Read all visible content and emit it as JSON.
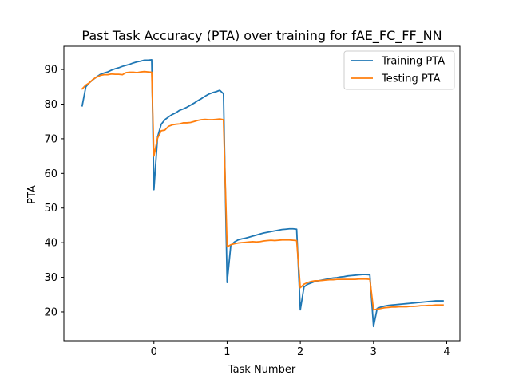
{
  "chart_data": {
    "type": "line",
    "title": "Past Task Accuracy (PTA) over training for fAE_FC_FF_NN",
    "xlabel": "Task Number",
    "ylabel": "PTA",
    "xlim": [
      -1.23,
      4.18
    ],
    "ylim": [
      11.7,
      96.7
    ],
    "xticks": [
      0,
      1,
      2,
      3,
      4
    ],
    "xtick_labels": [
      "0",
      "1",
      "2",
      "3",
      "4"
    ],
    "yticks": [
      20,
      30,
      40,
      50,
      60,
      70,
      80,
      90
    ],
    "ytick_labels": [
      "20",
      "30",
      "40",
      "50",
      "60",
      "70",
      "80",
      "90"
    ],
    "grid": false,
    "legend_position": "upper right",
    "series": [
      {
        "name": "Training PTA",
        "color": "#1f77b4",
        "x": [
          -0.98,
          -0.93,
          -0.88,
          -0.83,
          -0.78,
          -0.73,
          -0.68,
          -0.63,
          -0.58,
          -0.53,
          -0.48,
          -0.43,
          -0.38,
          -0.33,
          -0.28,
          -0.23,
          -0.18,
          -0.13,
          -0.08,
          -0.03,
          0.0,
          0.05,
          0.1,
          0.15,
          0.2,
          0.25,
          0.3,
          0.35,
          0.4,
          0.45,
          0.5,
          0.55,
          0.6,
          0.65,
          0.7,
          0.75,
          0.8,
          0.85,
          0.9,
          0.95,
          1.0,
          1.05,
          1.1,
          1.15,
          1.2,
          1.25,
          1.3,
          1.35,
          1.4,
          1.45,
          1.5,
          1.55,
          1.6,
          1.65,
          1.7,
          1.75,
          1.8,
          1.85,
          1.9,
          1.95,
          2.0,
          2.05,
          2.1,
          2.15,
          2.2,
          2.25,
          2.3,
          2.35,
          2.4,
          2.45,
          2.5,
          2.55,
          2.6,
          2.65,
          2.7,
          2.75,
          2.8,
          2.85,
          2.9,
          2.95,
          3.0,
          3.05,
          3.1,
          3.15,
          3.2,
          3.25,
          3.3,
          3.35,
          3.4,
          3.45,
          3.5,
          3.55,
          3.6,
          3.65,
          3.7,
          3.75,
          3.8,
          3.85,
          3.9,
          3.95
        ],
        "values": [
          79.5,
          85.0,
          86.2,
          87.1,
          87.9,
          88.6,
          89.0,
          89.3,
          89.8,
          90.2,
          90.5,
          90.9,
          91.2,
          91.5,
          91.9,
          92.2,
          92.4,
          92.7,
          92.7,
          92.8,
          55.3,
          70.5,
          74.2,
          75.5,
          76.3,
          77.0,
          77.5,
          78.2,
          78.6,
          79.1,
          79.7,
          80.3,
          81.0,
          81.6,
          82.3,
          82.9,
          83.3,
          83.6,
          84.0,
          83.0,
          28.5,
          39.2,
          40.2,
          40.8,
          41.1,
          41.3,
          41.6,
          41.9,
          42.2,
          42.5,
          42.8,
          43.0,
          43.2,
          43.4,
          43.6,
          43.8,
          43.9,
          44.0,
          44.0,
          43.9,
          20.6,
          27.2,
          28.0,
          28.4,
          28.8,
          29.0,
          29.2,
          29.4,
          29.6,
          29.8,
          29.9,
          30.1,
          30.2,
          30.4,
          30.5,
          30.6,
          30.7,
          30.8,
          30.8,
          30.7,
          15.8,
          21.0,
          21.4,
          21.7,
          21.9,
          22.0,
          22.1,
          22.2,
          22.3,
          22.4,
          22.5,
          22.6,
          22.7,
          22.8,
          22.9,
          23.0,
          23.1,
          23.2,
          23.2,
          23.2
        ]
      },
      {
        "name": "Testing PTA",
        "color": "#ff7f0e",
        "x": [
          -0.98,
          -0.93,
          -0.88,
          -0.83,
          -0.78,
          -0.73,
          -0.68,
          -0.63,
          -0.58,
          -0.53,
          -0.48,
          -0.43,
          -0.38,
          -0.33,
          -0.28,
          -0.23,
          -0.18,
          -0.13,
          -0.08,
          -0.03,
          0.0,
          0.05,
          0.1,
          0.15,
          0.2,
          0.25,
          0.3,
          0.35,
          0.4,
          0.45,
          0.5,
          0.55,
          0.6,
          0.65,
          0.7,
          0.75,
          0.8,
          0.85,
          0.9,
          0.95,
          1.0,
          1.05,
          1.1,
          1.15,
          1.2,
          1.25,
          1.3,
          1.35,
          1.4,
          1.45,
          1.5,
          1.55,
          1.6,
          1.65,
          1.7,
          1.75,
          1.8,
          1.85,
          1.9,
          1.95,
          2.0,
          2.05,
          2.1,
          2.15,
          2.2,
          2.25,
          2.3,
          2.35,
          2.4,
          2.45,
          2.5,
          2.55,
          2.6,
          2.65,
          2.7,
          2.75,
          2.8,
          2.85,
          2.9,
          2.95,
          3.0,
          3.05,
          3.1,
          3.15,
          3.2,
          3.25,
          3.3,
          3.35,
          3.4,
          3.45,
          3.5,
          3.55,
          3.6,
          3.65,
          3.7,
          3.75,
          3.8,
          3.85,
          3.9,
          3.95
        ],
        "values": [
          84.4,
          85.5,
          86.2,
          87.2,
          87.8,
          88.3,
          88.5,
          88.5,
          88.7,
          88.6,
          88.6,
          88.5,
          89.1,
          89.2,
          89.2,
          89.1,
          89.3,
          89.4,
          89.3,
          89.2,
          65.0,
          70.2,
          72.3,
          72.5,
          73.6,
          74.0,
          74.2,
          74.3,
          74.6,
          74.6,
          74.7,
          75.0,
          75.3,
          75.5,
          75.6,
          75.5,
          75.5,
          75.6,
          75.7,
          75.5,
          38.8,
          39.4,
          39.7,
          39.9,
          40.0,
          40.1,
          40.2,
          40.3,
          40.2,
          40.3,
          40.5,
          40.6,
          40.7,
          40.6,
          40.7,
          40.8,
          40.8,
          40.8,
          40.7,
          40.6,
          27.0,
          28.0,
          28.5,
          28.8,
          29.0,
          29.0,
          29.1,
          29.2,
          29.3,
          29.3,
          29.4,
          29.4,
          29.4,
          29.4,
          29.4,
          29.4,
          29.5,
          29.5,
          29.5,
          29.4,
          20.6,
          20.8,
          21.0,
          21.2,
          21.3,
          21.4,
          21.4,
          21.5,
          21.5,
          21.5,
          21.6,
          21.6,
          21.7,
          21.8,
          21.8,
          21.9,
          21.9,
          22.0,
          22.0,
          22.0
        ]
      }
    ]
  }
}
